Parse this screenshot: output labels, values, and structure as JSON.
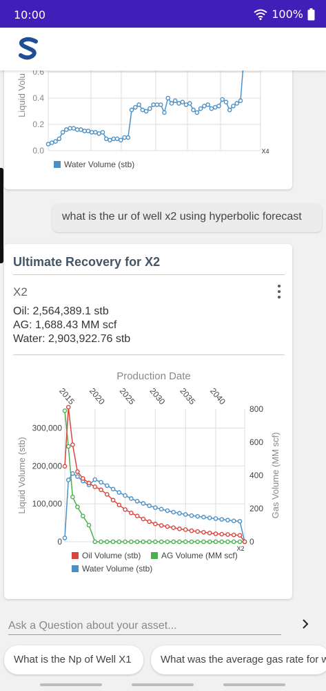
{
  "status": {
    "time": "10:00",
    "battery": "100%"
  },
  "app": {
    "logo": "S"
  },
  "top_chart": {
    "y_ticks": [
      "0.6",
      "0.4",
      "0.2",
      "0.0"
    ],
    "y_label": "Liquid Volu",
    "end_label": "X4",
    "legend": [
      {
        "name": "Water Volume (stb)",
        "color": "#4a90c8"
      }
    ]
  },
  "user_message": "what is the ur of well x2 using hyperbolic forecast",
  "result_card": {
    "title": "Ultimate Recovery for X2",
    "well": "X2",
    "stats": [
      "Oil: 2,564,389.1 stb",
      "AG: 1,688.43 MM scf",
      "Water: 2,903,922.76 stb"
    ]
  },
  "chart_data": [
    {
      "type": "line",
      "y_axis_label": "Liquid Volu",
      "y_ticks": [
        0.0,
        0.2,
        0.4,
        0.6
      ],
      "series": [
        {
          "name": "Water Volume (stb)",
          "color": "#4a90c8",
          "values": [
            0.05,
            0.06,
            0.07,
            0.09,
            0.14,
            0.16,
            0.17,
            0.17,
            0.16,
            0.16,
            0.15,
            0.15,
            0.14,
            0.14,
            0.13,
            0.14,
            0.09,
            0.08,
            0.09,
            0.09,
            0.08,
            0.1,
            0.1,
            0.31,
            0.33,
            0.35,
            0.31,
            0.3,
            0.32,
            0.35,
            0.35,
            0.35,
            0.29,
            0.4,
            0.36,
            0.38,
            0.36,
            0.37,
            0.35,
            0.36,
            0.31,
            0.29,
            0.32,
            0.34,
            0.35,
            0.32,
            0.33,
            0.34,
            0.39,
            0.37,
            0.31,
            0.34,
            0.36,
            0.38
          ]
        }
      ]
    },
    {
      "type": "line",
      "title": "Production Date",
      "x_ticks": [
        "2015",
        "2020",
        "2025",
        "2030",
        "2035",
        "2040"
      ],
      "end_label": "X2",
      "y_left": {
        "label": "Liquid Volume (stb)",
        "ticks": [
          "0",
          "100,000",
          "200,000",
          "300,000"
        ],
        "range": [
          0,
          350000
        ]
      },
      "y_right": {
        "label": "Gas Volume (MM scf)",
        "ticks": [
          "0",
          "200",
          "400",
          "600",
          "800"
        ],
        "range": [
          0,
          800
        ]
      },
      "series": [
        {
          "name": "Oil Volume (stb)",
          "color": "#d9453d",
          "axis": "left",
          "points": [
            [
              2015.0,
              199000
            ],
            [
              2015.6,
              355000
            ],
            [
              2016.3,
              256000
            ],
            [
              2017.1,
              185000
            ],
            [
              2018.0,
              167000
            ],
            [
              2019.0,
              155000
            ],
            [
              2020.0,
              145000
            ],
            [
              2021.0,
              137000
            ],
            [
              2022.0,
              125000
            ],
            [
              2023.0,
              110000
            ],
            [
              2024.0,
              97000
            ],
            [
              2025.0,
              85000
            ],
            [
              2026.0,
              76000
            ],
            [
              2027.0,
              68000
            ],
            [
              2028.0,
              60000
            ],
            [
              2029.0,
              53000
            ],
            [
              2030.0,
              47000
            ],
            [
              2031.0,
              43000
            ],
            [
              2032.0,
              40000
            ],
            [
              2033.0,
              37000
            ],
            [
              2034.0,
              34000
            ],
            [
              2035.0,
              32000
            ],
            [
              2036.0,
              29000
            ],
            [
              2037.0,
              27000
            ],
            [
              2038.0,
              25000
            ],
            [
              2039.0,
              23000
            ],
            [
              2040.0,
              21000
            ],
            [
              2041.0,
              20000
            ],
            [
              2042.0,
              19000
            ],
            [
              2043.0,
              18000
            ],
            [
              2044.0,
              17000
            ],
            [
              2044.8,
              0
            ]
          ]
        },
        {
          "name": "AG Volume (MM scf)",
          "color": "#4caf50",
          "axis": "right",
          "points": [
            [
              2015.0,
              790
            ],
            [
              2015.6,
              575
            ],
            [
              2016.3,
              270
            ],
            [
              2017.1,
              210
            ],
            [
              2018.0,
              155
            ],
            [
              2019.0,
              100
            ],
            [
              2020.0,
              0
            ],
            [
              2021.0,
              0
            ],
            [
              2022.0,
              0
            ],
            [
              2023.0,
              0
            ],
            [
              2024.0,
              0
            ],
            [
              2025.0,
              0
            ],
            [
              2026.0,
              0
            ],
            [
              2027.0,
              0
            ],
            [
              2028.0,
              0
            ],
            [
              2029.0,
              0
            ],
            [
              2030.0,
              0
            ],
            [
              2031.0,
              0
            ],
            [
              2032.0,
              0
            ],
            [
              2033.0,
              0
            ],
            [
              2034.0,
              0
            ],
            [
              2035.0,
              0
            ],
            [
              2036.0,
              0
            ],
            [
              2037.0,
              0
            ],
            [
              2038.0,
              0
            ],
            [
              2039.0,
              0
            ],
            [
              2040.0,
              0
            ],
            [
              2041.0,
              0
            ],
            [
              2042.0,
              0
            ],
            [
              2043.0,
              0
            ],
            [
              2044.0,
              0
            ],
            [
              2044.8,
              0
            ]
          ]
        },
        {
          "name": "Water Volume (stb)",
          "color": "#4a90c8",
          "axis": "left",
          "points": [
            [
              2015.0,
              10000
            ],
            [
              2015.6,
              163000
            ],
            [
              2016.3,
              180000
            ],
            [
              2017.1,
              172000
            ],
            [
              2018.0,
              160000
            ],
            [
              2019.0,
              150000
            ],
            [
              2020.0,
              164000
            ],
            [
              2021.0,
              157000
            ],
            [
              2022.0,
              148000
            ],
            [
              2023.0,
              139000
            ],
            [
              2024.0,
              130000
            ],
            [
              2025.0,
              122000
            ],
            [
              2026.0,
              114000
            ],
            [
              2027.0,
              107000
            ],
            [
              2028.0,
              101000
            ],
            [
              2029.0,
              95000
            ],
            [
              2030.0,
              90000
            ],
            [
              2031.0,
              86000
            ],
            [
              2032.0,
              82000
            ],
            [
              2033.0,
              78000
            ],
            [
              2034.0,
              75000
            ],
            [
              2035.0,
              72000
            ],
            [
              2036.0,
              69000
            ],
            [
              2037.0,
              67000
            ],
            [
              2038.0,
              65000
            ],
            [
              2039.0,
              63000
            ],
            [
              2040.0,
              61000
            ],
            [
              2041.0,
              59000
            ],
            [
              2042.0,
              57000
            ],
            [
              2043.0,
              55000
            ],
            [
              2044.0,
              54000
            ],
            [
              2044.8,
              0
            ]
          ]
        }
      ]
    }
  ],
  "input": {
    "placeholder": "Ask a Question about your asset..."
  },
  "chips": [
    "What is the Np of Well X1",
    "What was the average gas rate for w"
  ],
  "colors": {
    "status_bar": "#3f1fb8",
    "oil": "#d9453d",
    "gas": "#4caf50",
    "water": "#4a90c8"
  }
}
